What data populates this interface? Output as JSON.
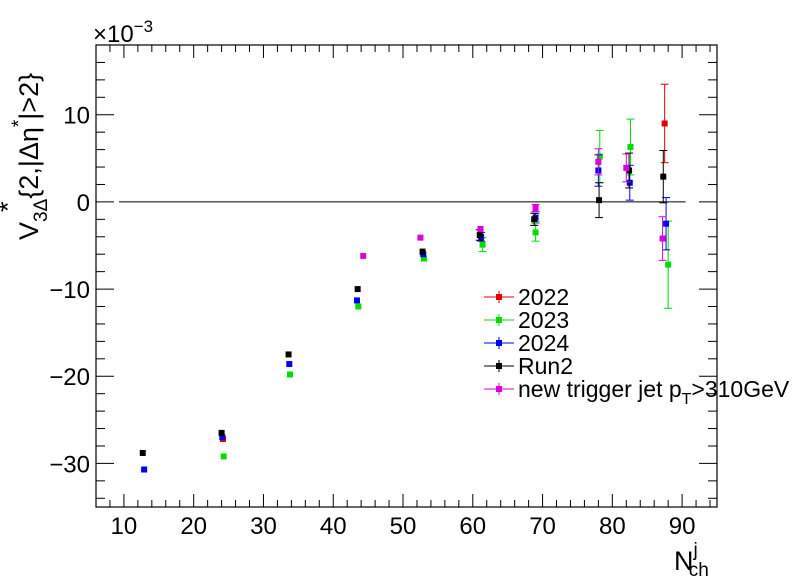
{
  "chart_data": {
    "type": "scatter",
    "title": "",
    "exponent_label": "×10",
    "exponent_power": "−3",
    "xlabel": {
      "main": "N",
      "sup": "j",
      "sub": "ch"
    },
    "ylabel": {
      "v": "V",
      "sub": "3Δ",
      "body": "{2,|Δη",
      "tail": "|>2}",
      "star": "*"
    },
    "xlim": [
      6,
      95
    ],
    "ylim": [
      -35,
      18
    ],
    "x_ticks": [
      10,
      20,
      30,
      40,
      50,
      60,
      70,
      80,
      90
    ],
    "y_ticks": [
      -30,
      -20,
      -10,
      0,
      10
    ],
    "reference_line_y": 0,
    "series": [
      {
        "name": "2022",
        "color": "#e00000",
        "points": [
          {
            "x": 24.2,
            "y": -27.2,
            "err": 0.2
          },
          {
            "x": 87.5,
            "y": 9.0,
            "err": 4.5
          }
        ]
      },
      {
        "name": "2023",
        "color": "#00dd00",
        "points": [
          {
            "x": 24.3,
            "y": -29.2,
            "err": 0.2
          },
          {
            "x": 33.8,
            "y": -19.8,
            "err": 0.2
          },
          {
            "x": 43.6,
            "y": -12.0,
            "err": 0.3
          },
          {
            "x": 53.0,
            "y": -6.5,
            "err": 0.3
          },
          {
            "x": 61.4,
            "y": -4.9,
            "err": 0.8
          },
          {
            "x": 69.0,
            "y": -3.5,
            "err": 1.0
          },
          {
            "x": 78.2,
            "y": 5.2,
            "err": 3.0
          },
          {
            "x": 82.6,
            "y": 6.3,
            "err": 3.2
          },
          {
            "x": 88.0,
            "y": -7.2,
            "err": 5.0
          }
        ]
      },
      {
        "name": "2024",
        "color": "#0000ee",
        "points": [
          {
            "x": 12.9,
            "y": -30.7,
            "err": 0.2
          },
          {
            "x": 24.1,
            "y": -27.0,
            "err": 0.2
          },
          {
            "x": 33.7,
            "y": -18.6,
            "err": 0.2
          },
          {
            "x": 43.4,
            "y": -11.3,
            "err": 0.3
          },
          {
            "x": 52.9,
            "y": -6.0,
            "err": 0.3
          },
          {
            "x": 61.2,
            "y": -4.0,
            "err": 0.5
          },
          {
            "x": 69.0,
            "y": -1.8,
            "err": 0.5
          },
          {
            "x": 78.0,
            "y": 3.6,
            "err": 1.8
          },
          {
            "x": 82.5,
            "y": 2.2,
            "err": 2.0
          },
          {
            "x": 87.7,
            "y": -2.5,
            "err": 3.0
          }
        ]
      },
      {
        "name": "Run2",
        "color": "#000000",
        "points": [
          {
            "x": 12.7,
            "y": -28.8,
            "err": 0.2
          },
          {
            "x": 24.0,
            "y": -26.5,
            "err": 0.2
          },
          {
            "x": 33.6,
            "y": -17.5,
            "err": 0.2
          },
          {
            "x": 43.5,
            "y": -10.0,
            "err": 0.3
          },
          {
            "x": 52.8,
            "y": -5.7,
            "err": 0.3
          },
          {
            "x": 61.0,
            "y": -3.8,
            "err": 0.6
          },
          {
            "x": 68.8,
            "y": -2.0,
            "err": 0.7
          },
          {
            "x": 78.1,
            "y": 0.2,
            "err": 2.0
          },
          {
            "x": 82.4,
            "y": 3.6,
            "err": 2.0
          },
          {
            "x": 87.3,
            "y": 2.9,
            "err": 3.0
          }
        ]
      },
      {
        "name": "new trigger jet p_T>310GeV",
        "color": "#dd00dd",
        "legend": {
          "main": "new trigger jet p",
          "sub": "T",
          "tail": ">310GeV"
        },
        "points": [
          {
            "x": 44.3,
            "y": -6.2,
            "err": 0.2
          },
          {
            "x": 52.5,
            "y": -4.1,
            "err": 0.2
          },
          {
            "x": 61.1,
            "y": -3.1,
            "err": 0.3
          },
          {
            "x": 69.0,
            "y": -0.7,
            "err": 0.4
          },
          {
            "x": 78.0,
            "y": 4.6,
            "err": 1.5
          },
          {
            "x": 82.0,
            "y": 3.9,
            "err": 1.6
          },
          {
            "x": 87.2,
            "y": -4.2,
            "err": 2.5
          }
        ]
      }
    ]
  }
}
